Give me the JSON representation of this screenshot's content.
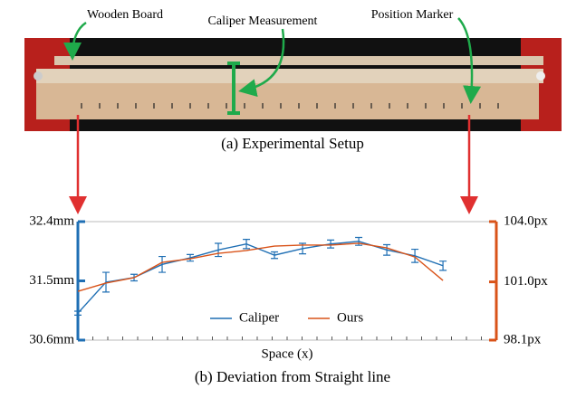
{
  "figure": {
    "annotations": [
      "Wooden Board",
      "Caliper Measurement",
      "Position Marker"
    ],
    "caption_a": "(a) Experimental Setup",
    "caption_b": "(b) Deviation from Straight line"
  },
  "chart_data": {
    "type": "line",
    "xlabel": "Space (x)",
    "categories": [
      null,
      null,
      null,
      null,
      null,
      null,
      null,
      null,
      null,
      null,
      null,
      null,
      null,
      null
    ],
    "ylim": [
      30.6,
      32.4
    ],
    "yticks": [
      {
        "value": 30.6,
        "label": "30.6mm"
      },
      {
        "value": 31.5,
        "label": "31.5mm"
      },
      {
        "value": 32.4,
        "label": "32.4mm"
      }
    ],
    "y2lim": [
      98.1,
      104.0
    ],
    "y2ticks": [
      {
        "value": 98.1,
        "label": "98.1px"
      },
      {
        "value": 101.0,
        "label": "101.0px"
      },
      {
        "value": 104.0,
        "label": "104.0px"
      }
    ],
    "y_color": "#1f6fb4",
    "y2_color": "#d95319",
    "legend": "bottom",
    "series": [
      {
        "name": "Caliper",
        "color": "#1f6fb4",
        "values": [
          31.01,
          31.48,
          31.55,
          31.75,
          31.85,
          31.97,
          32.06,
          31.89,
          31.99,
          32.06,
          32.1,
          31.97,
          31.88,
          31.73
        ],
        "error": [
          0.03,
          0.15,
          0.05,
          0.12,
          0.05,
          0.1,
          0.07,
          0.05,
          0.08,
          0.06,
          0.06,
          0.08,
          0.1,
          0.07
        ]
      },
      {
        "name": "Ours",
        "color": "#d95319",
        "axis": "y2",
        "values": [
          100.53,
          100.94,
          101.21,
          101.97,
          102.15,
          102.42,
          102.56,
          102.78,
          102.83,
          102.83,
          102.92,
          102.69,
          102.24,
          101.07
        ]
      }
    ]
  }
}
